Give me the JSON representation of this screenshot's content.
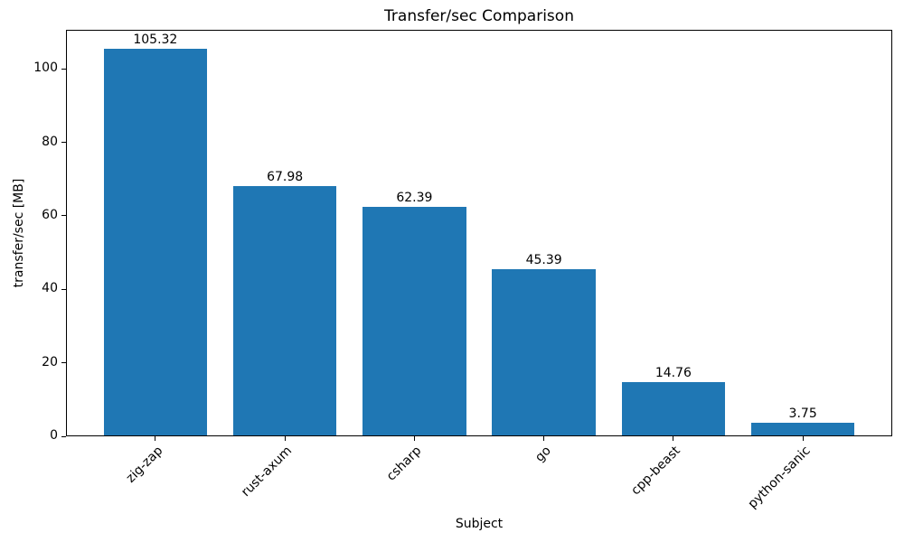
{
  "chart_data": {
    "type": "bar",
    "title": "Transfer/sec Comparison",
    "xlabel": "Subject",
    "ylabel": "transfer/sec [MB]",
    "categories": [
      "zig-zap",
      "rust-axum",
      "csharp",
      "go",
      "cpp-beast",
      "python-sanic"
    ],
    "values": [
      105.32,
      67.98,
      62.39,
      45.39,
      14.76,
      3.75
    ],
    "bar_value_labels": [
      "105.32",
      "67.98",
      "62.39",
      "45.39",
      "14.76",
      "3.75"
    ],
    "yticks": [
      0,
      20,
      40,
      60,
      80,
      100
    ],
    "ytick_labels": [
      "0",
      "20",
      "40",
      "60",
      "80",
      "100"
    ],
    "ylim": [
      0,
      110.6
    ],
    "bar_color": "#1f77b4",
    "text_color": "#000000",
    "grid": false,
    "legend": null,
    "xtick_rotation_deg": 45
  }
}
